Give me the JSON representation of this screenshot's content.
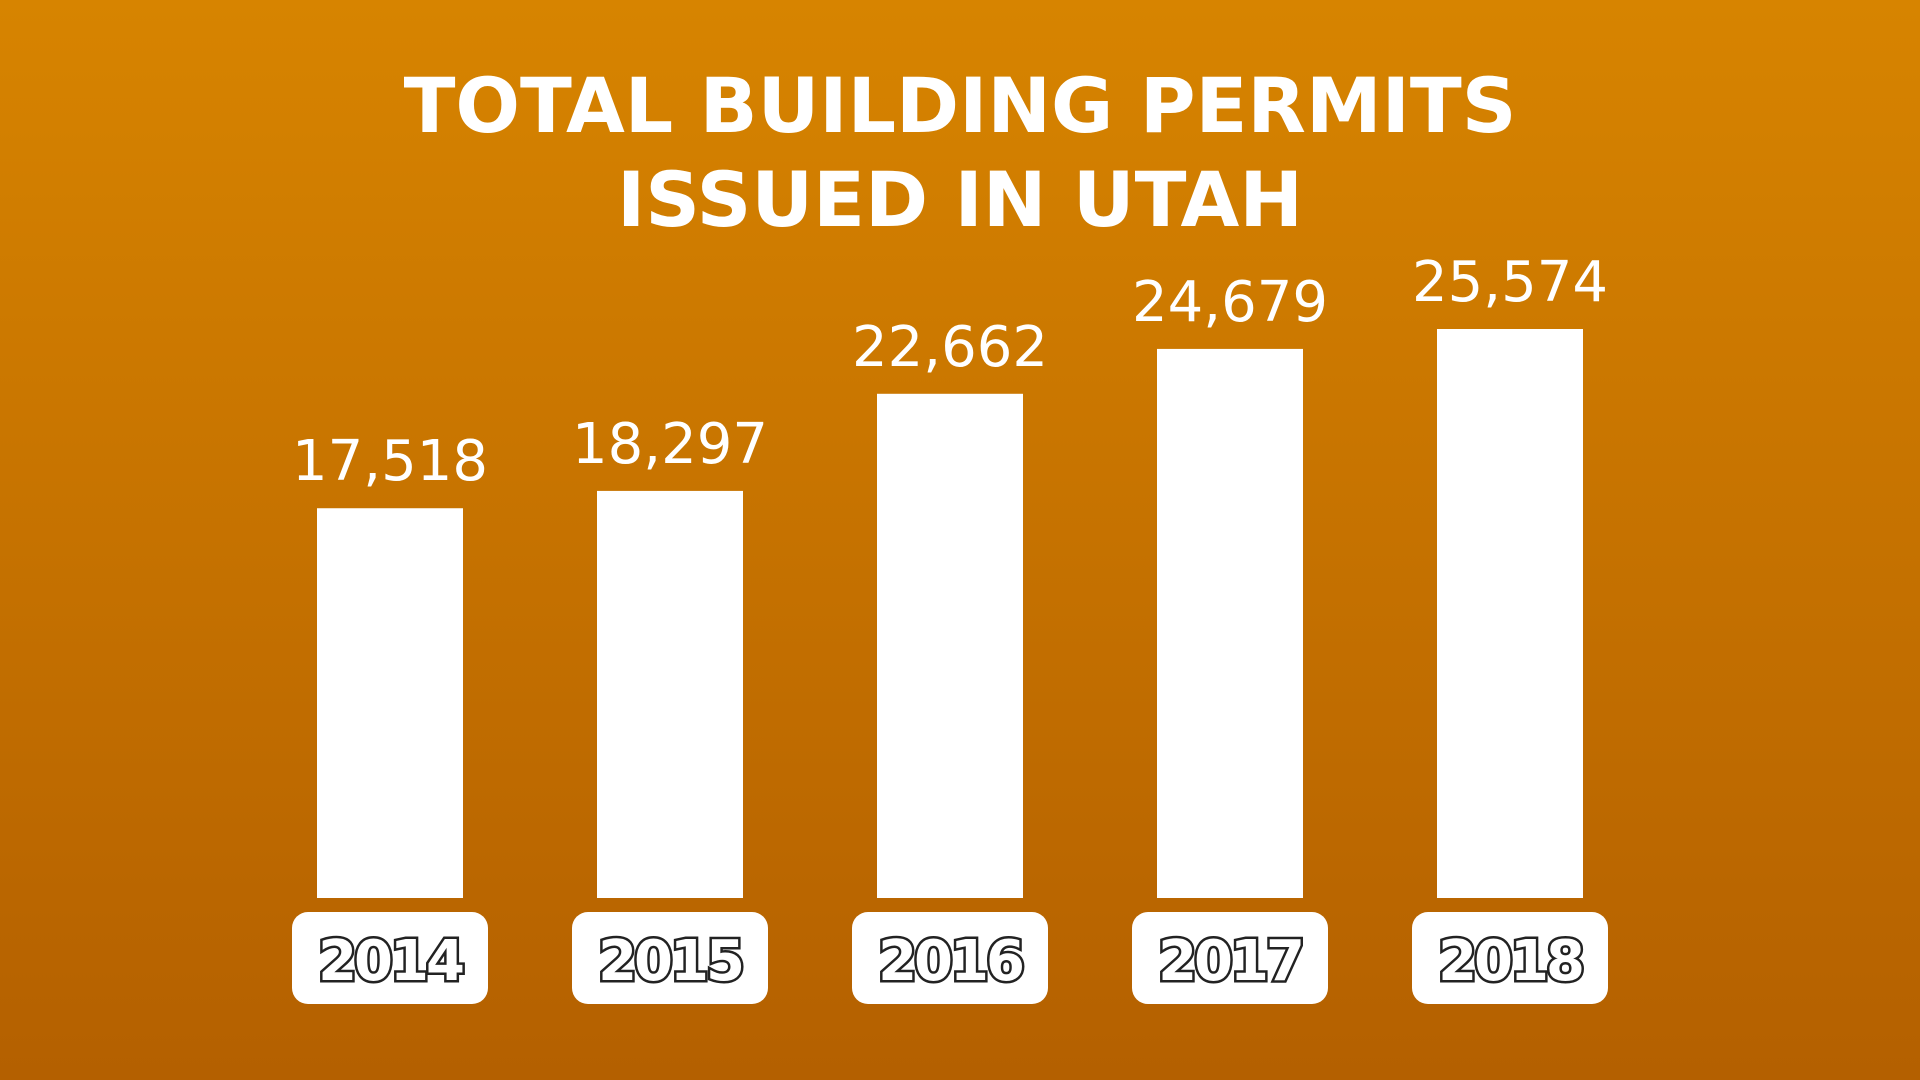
{
  "colors": {
    "background_top": "#D78400",
    "background_bottom": "#B46000",
    "bar": "#FFFFFF",
    "text": "#FFFFFF",
    "year_badge_bg": "#FFFFFF",
    "year_text": "#FFFFFF",
    "year_text_outline": "#222222"
  },
  "chart_data": {
    "type": "bar",
    "title_lines": [
      "TOTAL BUILDING PERMITS",
      "ISSUED IN UTAH"
    ],
    "title": "TOTAL BUILDING PERMITS ISSUED IN UTAH",
    "xlabel": "",
    "ylabel": "",
    "categories": [
      "2014",
      "2015",
      "2016",
      "2017",
      "2018"
    ],
    "values": [
      17518,
      18297,
      22662,
      24679,
      25574
    ],
    "value_labels": [
      "17,518",
      "18,297",
      "22,662",
      "24,679",
      "25,574"
    ],
    "ylim": [
      0,
      25574
    ],
    "grid": false,
    "legend": "none"
  }
}
